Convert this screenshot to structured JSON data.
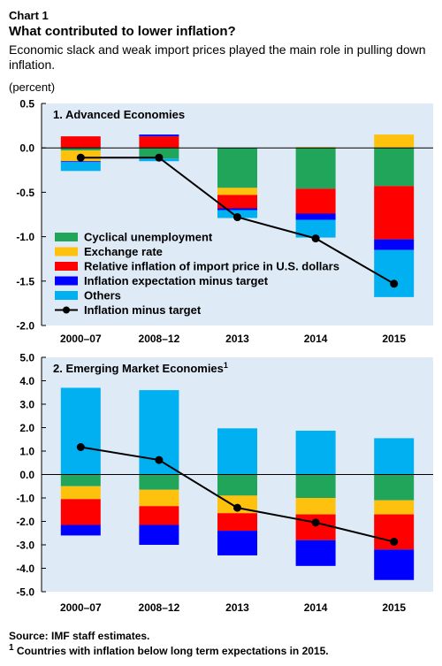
{
  "header": {
    "chart_label": "Chart 1",
    "title": "What contributed to lower inflation?",
    "subtitle": "Economic slack and weak import prices played the main role in pulling down inflation.",
    "unit": "(percent)"
  },
  "footer": {
    "source": "Source: IMF staff estimates.",
    "footnote_marker": "1",
    "footnote": " Countries with inflation below long term expectations in 2015."
  },
  "colors": {
    "panel_bg": "#dfeaf7",
    "cyclical": "#21a55a",
    "exchange": "#fec10d",
    "import": "#fe0000",
    "expectation": "#0000fe",
    "others": "#00b0f0",
    "line": "#000000"
  },
  "chart_data": [
    {
      "type": "bar",
      "stacked": true,
      "title": "1. Advanced Economies",
      "title_superscript": "",
      "categories": [
        "2000–07",
        "2008–12",
        "2013",
        "2014",
        "2015"
      ],
      "ylim": [
        -2.0,
        0.5
      ],
      "yticks": [
        "0.5",
        "0.0",
        "-0.5",
        "-1.0",
        "-1.5",
        "-2.0"
      ],
      "ytick_values": [
        0.5,
        0.0,
        -0.5,
        -1.0,
        -1.5,
        -2.0
      ],
      "grid": false,
      "legend": "bottom-left",
      "series": [
        {
          "key": "cyclical",
          "name": "Cyclical unemployment",
          "values": [
            -0.03,
            -0.12,
            -0.45,
            -0.46,
            -0.43
          ]
        },
        {
          "key": "exchange",
          "name": "Exchange rate",
          "values": [
            -0.12,
            0.0,
            -0.08,
            0.01,
            0.15
          ]
        },
        {
          "key": "import",
          "name": "Relative inflation of import price in U.S. dollars",
          "values": [
            0.13,
            0.13,
            -0.15,
            -0.28,
            -0.6
          ]
        },
        {
          "key": "expectation",
          "name": "Inflation expectation minus target",
          "values": [
            -0.01,
            0.02,
            -0.02,
            -0.07,
            -0.12
          ]
        },
        {
          "key": "others",
          "name": "Others",
          "values": [
            -0.1,
            -0.03,
            -0.09,
            -0.2,
            -0.53
          ]
        }
      ],
      "line": {
        "name": "Inflation minus target",
        "values": [
          -0.11,
          -0.11,
          -0.78,
          -1.02,
          -1.53
        ]
      }
    },
    {
      "type": "bar",
      "stacked": true,
      "title": "2. Emerging Market Economies",
      "title_superscript": "1",
      "categories": [
        "2000–07",
        "2008–12",
        "2013",
        "2014",
        "2015"
      ],
      "ylim": [
        -5.0,
        5.0
      ],
      "yticks": [
        "5.0",
        "4.0",
        "3.0",
        "2.0",
        "1.0",
        "0.0",
        "-1.0",
        "-2.0",
        "-3.0",
        "-4.0",
        "-5.0"
      ],
      "ytick_values": [
        5,
        4,
        3,
        2,
        1,
        0,
        -1,
        -2,
        -3,
        -4,
        -5
      ],
      "grid": false,
      "legend": "none",
      "series": [
        {
          "key": "cyclical",
          "name": "Cyclical unemployment",
          "values": [
            -0.5,
            -0.65,
            -0.9,
            -1.0,
            -1.1
          ]
        },
        {
          "key": "exchange",
          "name": "Exchange rate",
          "values": [
            -0.55,
            -0.7,
            -0.75,
            -0.7,
            -0.6
          ]
        },
        {
          "key": "import",
          "name": "Relative inflation of import price in U.S. dollars",
          "values": [
            -1.1,
            -0.8,
            -0.75,
            -1.1,
            -1.5
          ]
        },
        {
          "key": "expectation",
          "name": "Inflation expectation minus target",
          "values": [
            -0.45,
            -0.85,
            -1.05,
            -1.1,
            -1.3
          ]
        },
        {
          "key": "others",
          "name": "Others",
          "values": [
            3.7,
            3.6,
            1.97,
            1.87,
            1.55
          ]
        }
      ],
      "line": {
        "name": "Inflation minus target",
        "values": [
          1.17,
          0.62,
          -1.42,
          -2.05,
          -2.87
        ]
      }
    }
  ]
}
